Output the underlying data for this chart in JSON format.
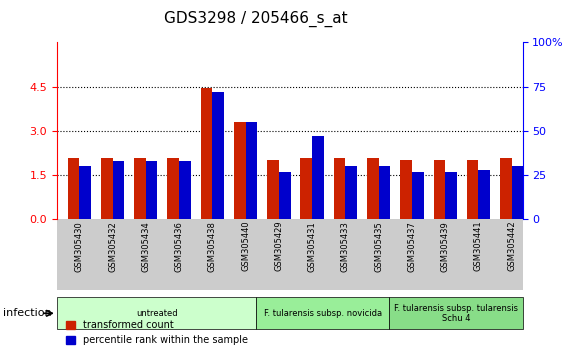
{
  "title": "GDS3298 / 205466_s_at",
  "samples": [
    "GSM305430",
    "GSM305432",
    "GSM305434",
    "GSM305436",
    "GSM305438",
    "GSM305440",
    "GSM305429",
    "GSM305431",
    "GSM305433",
    "GSM305435",
    "GSM305437",
    "GSM305439",
    "GSM305441",
    "GSM305442"
  ],
  "transformed_count": [
    2.1,
    2.1,
    2.1,
    2.1,
    4.45,
    3.3,
    2.0,
    2.1,
    2.1,
    2.1,
    2.0,
    2.0,
    2.0,
    2.1
  ],
  "percentile_rank": [
    30,
    33,
    33,
    33,
    72,
    55,
    27,
    47,
    30,
    30,
    27,
    27,
    28,
    30
  ],
  "bar_color_red": "#cc2200",
  "bar_color_blue": "#0000cc",
  "ylim_left": [
    0,
    6
  ],
  "ylim_right": [
    0,
    100
  ],
  "yticks_left": [
    0,
    1.5,
    3.0,
    4.5
  ],
  "yticks_right": [
    0,
    25,
    50,
    75,
    100
  ],
  "ytick_labels_right": [
    "0",
    "25",
    "50",
    "75",
    "100%"
  ],
  "groups": [
    {
      "label": "untreated",
      "start": 0,
      "end": 6,
      "color": "#ccffcc"
    },
    {
      "label": "F. tularensis subsp. novicida",
      "start": 6,
      "end": 10,
      "color": "#99ee99"
    },
    {
      "label": "F. tularensis subsp. tularensis\nSchu 4",
      "start": 10,
      "end": 14,
      "color": "#88dd88"
    }
  ],
  "infection_label": "infection",
  "legend_red_label": "transformed count",
  "legend_blue_label": "percentile rank within the sample",
  "bar_width": 0.35,
  "plot_bg_color": "#ffffff",
  "xtick_label_area_color": "#cccccc"
}
